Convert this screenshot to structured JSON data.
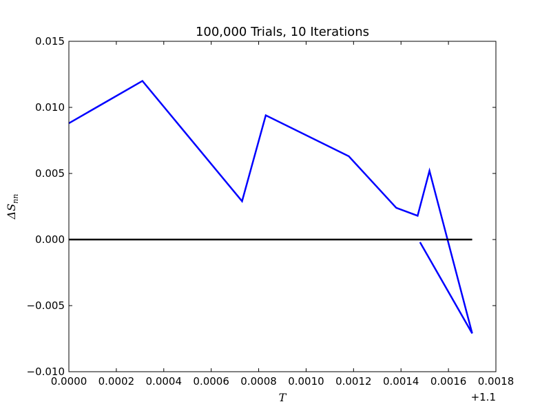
{
  "chart_data": {
    "type": "line",
    "title": "100,000 Trials, 10 Iterations",
    "xlabel": "T",
    "ylabel": "ΔS_nn",
    "ylabel_main": "ΔS",
    "ylabel_sub": "nn",
    "x_offset_label": "+1.1",
    "xlim": [
      0.0,
      0.0018
    ],
    "ylim": [
      -0.01,
      0.015
    ],
    "x_ticks": [
      0.0,
      0.0002,
      0.0004,
      0.0006,
      0.0008,
      0.001,
      0.0012,
      0.0014,
      0.0016,
      0.0018
    ],
    "x_tick_labels": [
      "0.0000",
      "0.0002",
      "0.0004",
      "0.0006",
      "0.0008",
      "0.0010",
      "0.0012",
      "0.0014",
      "0.0016",
      "0.0018"
    ],
    "y_ticks": [
      -0.01,
      -0.005,
      0.0,
      0.005,
      0.01,
      0.015
    ],
    "y_tick_labels": [
      "−0.010",
      "−0.005",
      "0.000",
      "0.005",
      "0.010",
      "0.015"
    ],
    "grid": false,
    "series": [
      {
        "color": "#0000ff",
        "x": [
          0.0,
          0.00031,
          0.00073,
          0.00083,
          0.00118,
          0.00138,
          0.00147,
          0.00152,
          0.0017,
          0.00148
        ],
        "y": [
          0.0088,
          0.012,
          0.0029,
          0.0094,
          0.0063,
          0.0024,
          0.0018,
          0.0052,
          -0.0071,
          -0.0002
        ]
      },
      {
        "color": "#000000",
        "x": [
          0.0,
          0.0017
        ],
        "y": [
          0.0,
          0.0
        ]
      }
    ]
  }
}
